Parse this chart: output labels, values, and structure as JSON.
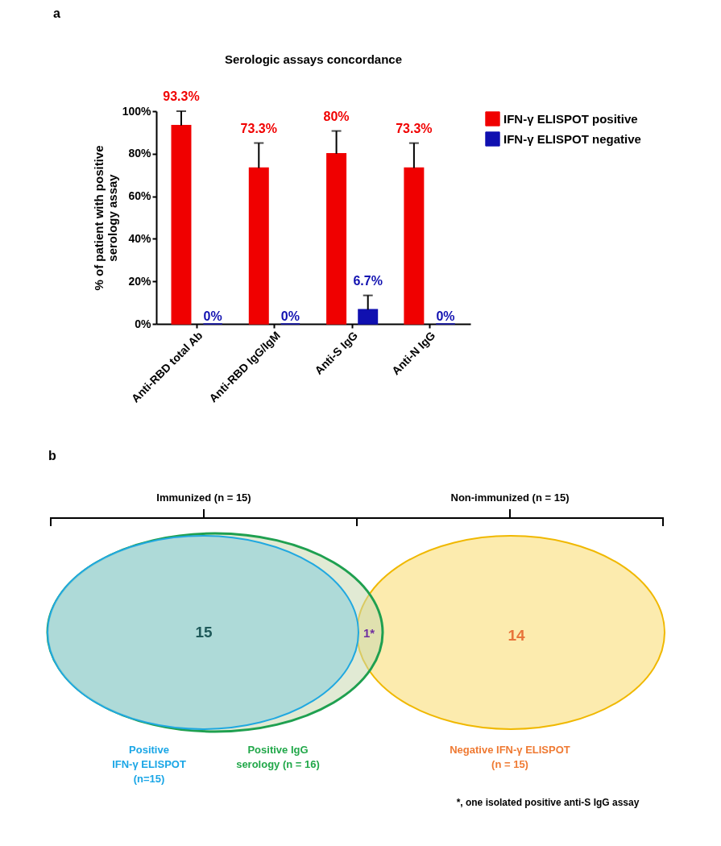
{
  "chart_data": [
    {
      "type": "bar",
      "title": "Serologic assays concordance",
      "ylabel": "% of patient with positive serology assay",
      "annotations": [
        "a"
      ],
      "categories": [
        "Anti-RBD total Ab",
        "Anti-RBD IgG/IgM",
        "Anti-S IgG",
        "Anti-N IgG"
      ],
      "series": [
        {
          "name": "IFN-γ ELISPOT positive",
          "color": "#f00000",
          "values": [
            93.3,
            73.3,
            80,
            73.3
          ],
          "errors": [
            [
              93.3,
              100
            ],
            [
              73.3,
              85
            ],
            [
              80,
              90.7
            ],
            [
              73.3,
              85
            ]
          ],
          "value_labels": [
            "93.3%",
            "73.3%",
            "80%",
            "73.3%"
          ]
        },
        {
          "name": "IFN-γ ELISPOT negative",
          "color": "#1010b0",
          "values": [
            0,
            0,
            6.7,
            0
          ],
          "errors": [
            null,
            null,
            [
              6.7,
              13.4
            ],
            null
          ],
          "value_labels": [
            "0%",
            "0%",
            "6.7%",
            "0%"
          ]
        }
      ],
      "ylim": [
        0,
        100
      ],
      "yticks": [
        {
          "value": 0,
          "label": "0%"
        },
        {
          "value": 20,
          "label": "20%"
        },
        {
          "value": 40,
          "label": "40%"
        },
        {
          "value": 60,
          "label": "60%"
        },
        {
          "value": 80,
          "label": "80%"
        },
        {
          "value": 100,
          "label": "100%"
        }
      ],
      "grid": false,
      "legend": "top right"
    },
    {
      "type": "other",
      "annotations": [
        "15",
        "1*",
        "14",
        "b",
        "Immunized (n = 15)",
        "Non-immunized (n = 15)",
        "Positive\nIFN-γ ELISPOT\n(n=15)",
        "Positive IgG\nserology (n = 16)",
        "Negative IFN-γ ELISPOT\n(n = 15)",
        "*, one isolated positive anti-S IgG assay"
      ]
    }
  ]
}
